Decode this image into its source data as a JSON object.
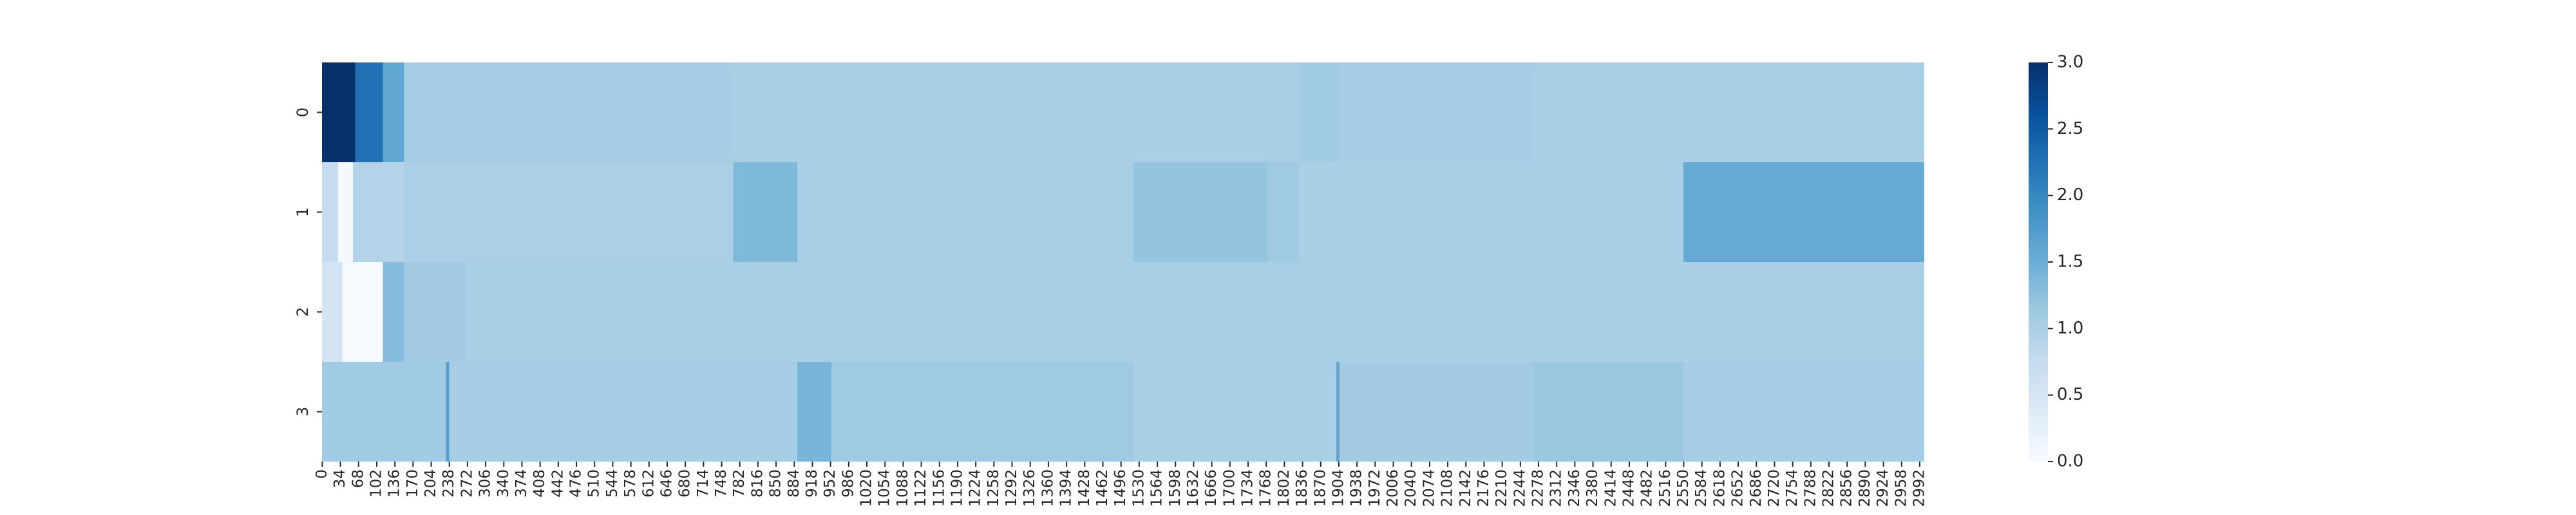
{
  "chart_data": {
    "type": "heatmap",
    "title": "",
    "xlabel": "",
    "ylabel": "",
    "rows": [
      "0",
      "1",
      "2",
      "3"
    ],
    "x_tick_labels": [
      "0",
      "34",
      "68",
      "102",
      "136",
      "170",
      "204",
      "238",
      "272",
      "306",
      "340",
      "374",
      "408",
      "442",
      "476",
      "510",
      "544",
      "578",
      "612",
      "646",
      "680",
      "714",
      "748",
      "782",
      "816",
      "850",
      "884",
      "918",
      "952",
      "986",
      "1020",
      "1054",
      "1088",
      "1122",
      "1156",
      "1190",
      "1224",
      "1258",
      "1292",
      "1326",
      "1360",
      "1394",
      "1428",
      "1462",
      "1496",
      "1530",
      "1564",
      "1598",
      "1632",
      "1666",
      "1700",
      "1734",
      "1768",
      "1802",
      "1836",
      "1870",
      "1904",
      "1938",
      "1972",
      "2006",
      "2040",
      "2074",
      "2108",
      "2142",
      "2176",
      "2210",
      "2244",
      "2278",
      "2312",
      "2346",
      "2380",
      "2414",
      "2448",
      "2482",
      "2516",
      "2550",
      "2584",
      "2618",
      "2652",
      "2686",
      "2720",
      "2754",
      "2788",
      "2822",
      "2856",
      "2890",
      "2924",
      "2958",
      "2992"
    ],
    "n_columns": 3001,
    "value_range": [
      0.0,
      3.0
    ],
    "colormap": "Blues",
    "colorbar_ticks": [
      "0.0",
      "0.5",
      "1.0",
      "1.5",
      "2.0",
      "2.5",
      "3.0"
    ],
    "row_segments": [
      [
        {
          "from": 0,
          "to": 62,
          "value": 3.0
        },
        {
          "from": 62,
          "to": 114,
          "value": 2.25
        },
        {
          "from": 114,
          "to": 154,
          "value": 1.6
        },
        {
          "from": 154,
          "to": 770,
          "value": 1.05
        },
        {
          "from": 770,
          "to": 1830,
          "value": 1.02
        },
        {
          "from": 1830,
          "to": 1902,
          "value": 1.1
        },
        {
          "from": 1902,
          "to": 2270,
          "value": 1.05
        },
        {
          "from": 2270,
          "to": 3001,
          "value": 1.02
        }
      ],
      [
        {
          "from": 0,
          "to": 30,
          "value": 0.75
        },
        {
          "from": 30,
          "to": 58,
          "value": 0.05
        },
        {
          "from": 58,
          "to": 154,
          "value": 0.92
        },
        {
          "from": 154,
          "to": 770,
          "value": 1.0
        },
        {
          "from": 770,
          "to": 890,
          "value": 1.35
        },
        {
          "from": 890,
          "to": 1520,
          "value": 1.02
        },
        {
          "from": 1520,
          "to": 1770,
          "value": 1.2
        },
        {
          "from": 1770,
          "to": 1830,
          "value": 1.12
        },
        {
          "from": 1830,
          "to": 2550,
          "value": 1.02
        },
        {
          "from": 2550,
          "to": 3001,
          "value": 1.55
        }
      ],
      [
        {
          "from": 0,
          "to": 38,
          "value": 0.55
        },
        {
          "from": 38,
          "to": 114,
          "value": 0.02
        },
        {
          "from": 114,
          "to": 154,
          "value": 1.3
        },
        {
          "from": 154,
          "to": 270,
          "value": 1.08
        },
        {
          "from": 270,
          "to": 3001,
          "value": 1.02
        }
      ],
      [
        {
          "from": 0,
          "to": 232,
          "value": 1.1
        },
        {
          "from": 232,
          "to": 238,
          "value": 1.7
        },
        {
          "from": 238,
          "to": 890,
          "value": 1.05
        },
        {
          "from": 890,
          "to": 954,
          "value": 1.4
        },
        {
          "from": 954,
          "to": 1520,
          "value": 1.12
        },
        {
          "from": 1520,
          "to": 1900,
          "value": 1.02
        },
        {
          "from": 1900,
          "to": 1906,
          "value": 1.6
        },
        {
          "from": 1906,
          "to": 2270,
          "value": 1.08
        },
        {
          "from": 2270,
          "to": 2550,
          "value": 1.15
        },
        {
          "from": 2550,
          "to": 3001,
          "value": 1.05
        }
      ]
    ]
  }
}
